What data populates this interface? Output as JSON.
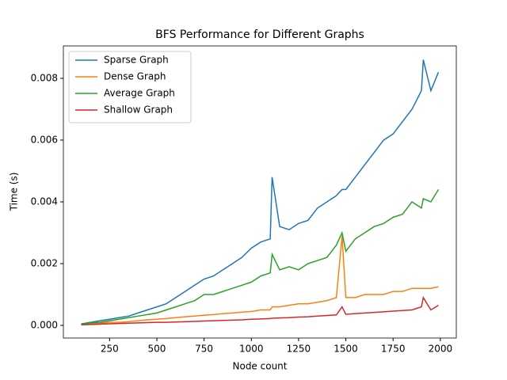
{
  "chart_data": {
    "type": "line",
    "title": "BFS Performance for Different Graphs",
    "xlabel": "Node count",
    "ylabel": "Time (s)",
    "x": [
      100,
      150,
      200,
      250,
      300,
      350,
      400,
      450,
      500,
      550,
      600,
      650,
      700,
      750,
      800,
      850,
      900,
      950,
      1000,
      1050,
      1100,
      1110,
      1150,
      1200,
      1250,
      1300,
      1350,
      1400,
      1450,
      1480,
      1500,
      1550,
      1600,
      1650,
      1700,
      1750,
      1800,
      1850,
      1900,
      1910,
      1950,
      1990
    ],
    "series": [
      {
        "name": "Sparse Graph",
        "color": "#1f77b4",
        "values": [
          5e-05,
          0.0001,
          0.00015,
          0.0002,
          0.00025,
          0.0003,
          0.0004,
          0.0005,
          0.0006,
          0.0007,
          0.0009,
          0.0011,
          0.0013,
          0.0015,
          0.0016,
          0.0018,
          0.002,
          0.0022,
          0.0025,
          0.0027,
          0.0028,
          0.0048,
          0.0032,
          0.0031,
          0.0033,
          0.0034,
          0.0038,
          0.004,
          0.0042,
          0.0044,
          0.0044,
          0.0048,
          0.0052,
          0.0056,
          0.006,
          0.0062,
          0.0066,
          0.007,
          0.0076,
          0.0086,
          0.0076,
          0.0082
        ]
      },
      {
        "name": "Dense Graph",
        "color": "#ff7f0e",
        "values": [
          3e-05,
          5e-05,
          7e-05,
          0.0001,
          0.0001,
          0.00012,
          0.00015,
          0.00018,
          0.0002,
          0.00022,
          0.00025,
          0.00028,
          0.0003,
          0.00033,
          0.00035,
          0.00038,
          0.0004,
          0.00043,
          0.00045,
          0.0005,
          0.0005,
          0.0006,
          0.0006,
          0.00065,
          0.0007,
          0.0007,
          0.00075,
          0.0008,
          0.0009,
          0.0029,
          0.0009,
          0.0009,
          0.001,
          0.001,
          0.001,
          0.0011,
          0.0011,
          0.0012,
          0.0012,
          0.0012,
          0.0012,
          0.00125
        ]
      },
      {
        "name": "Average Graph",
        "color": "#2ca02c",
        "values": [
          3e-05,
          8e-05,
          0.0001,
          0.00015,
          0.0002,
          0.00025,
          0.0003,
          0.00035,
          0.0004,
          0.0005,
          0.0006,
          0.0007,
          0.0008,
          0.001,
          0.001,
          0.0011,
          0.0012,
          0.0013,
          0.0014,
          0.0016,
          0.0017,
          0.0023,
          0.0018,
          0.0019,
          0.0018,
          0.002,
          0.0021,
          0.0022,
          0.0026,
          0.003,
          0.0024,
          0.0028,
          0.003,
          0.0032,
          0.0033,
          0.0035,
          0.0036,
          0.004,
          0.0038,
          0.0041,
          0.004,
          0.0044
        ]
      },
      {
        "name": "Shallow Graph",
        "color": "#d62728",
        "values": [
          2e-05,
          3e-05,
          4e-05,
          5e-05,
          6e-05,
          7e-05,
          8e-05,
          9e-05,
          0.0001,
          0.0001,
          0.00011,
          0.00012,
          0.00013,
          0.00014,
          0.00015,
          0.00016,
          0.00017,
          0.00018,
          0.0002,
          0.00021,
          0.00022,
          0.00023,
          0.00024,
          0.00025,
          0.00027,
          0.00028,
          0.0003,
          0.00032,
          0.00034,
          0.0006,
          0.00036,
          0.00038,
          0.0004,
          0.00042,
          0.00044,
          0.00046,
          0.00048,
          0.0005,
          0.0006,
          0.0009,
          0.0005,
          0.00065
        ]
      }
    ],
    "xlim": [
      5.5,
      2084.5
    ],
    "ylim": [
      -0.00041,
      0.00905
    ],
    "xticks": [
      250,
      500,
      750,
      1000,
      1250,
      1500,
      1750,
      2000
    ],
    "yticks": [
      {
        "value": 0,
        "label": "0.000"
      },
      {
        "value": 0.002,
        "label": "0.002"
      },
      {
        "value": 0.004,
        "label": "0.004"
      },
      {
        "value": 0.006,
        "label": "0.006"
      },
      {
        "value": 0.008,
        "label": "0.008"
      }
    ],
    "legend": "upper left"
  }
}
